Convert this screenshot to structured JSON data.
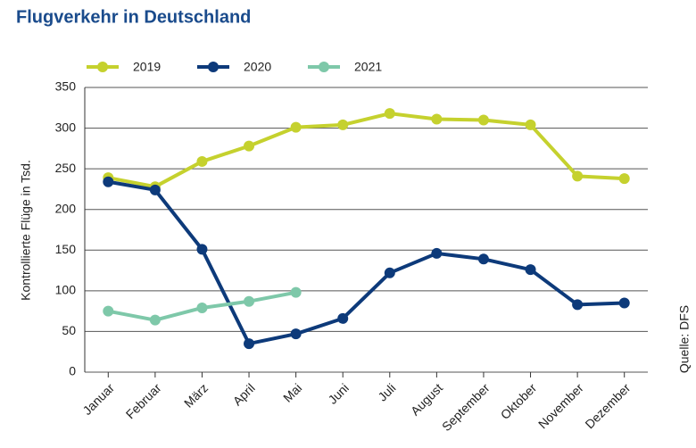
{
  "chart_data": {
    "type": "line",
    "title": "Flugverkehr in Deutschland",
    "y_label": "Kontrollierte Flüge in Tsd.",
    "source": "Quelle: DFS",
    "categories": [
      "Januar",
      "Februar",
      "März",
      "April",
      "Mai",
      "Juni",
      "Juli",
      "August",
      "September",
      "Oktober",
      "November",
      "Dezember"
    ],
    "series": [
      {
        "name": "2019",
        "color": "#c5d12e",
        "values": [
          239,
          228,
          259,
          278,
          301,
          304,
          318,
          311,
          310,
          304,
          241,
          238
        ]
      },
      {
        "name": "2020",
        "color": "#0d3a7a",
        "values": [
          234,
          224,
          151,
          35,
          47,
          66,
          122,
          146,
          139,
          126,
          83,
          85
        ]
      },
      {
        "name": "2021",
        "color": "#7ec8a9",
        "values": [
          75,
          64,
          79,
          87,
          98,
          null,
          null,
          null,
          null,
          null,
          null,
          null
        ]
      }
    ],
    "ylim": [
      0,
      350
    ],
    "yticks": [
      0,
      50,
      100,
      150,
      200,
      250,
      300,
      350
    ],
    "grid": true,
    "legend": "top"
  }
}
